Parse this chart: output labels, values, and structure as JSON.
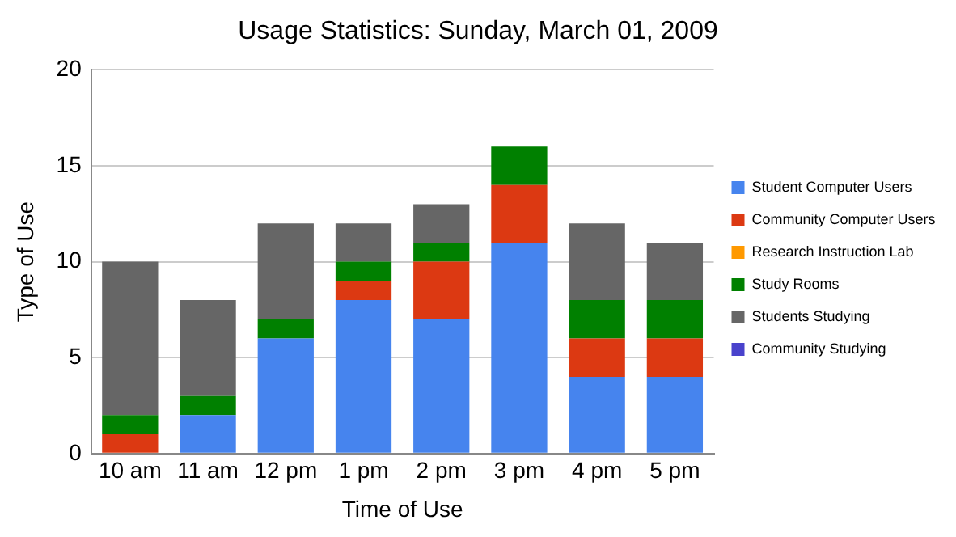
{
  "chart_data": {
    "type": "bar",
    "title": "Usage Statistics: Sunday, March 01, 2009",
    "xlabel": "Time of Use",
    "ylabel": "Type of Use",
    "categories": [
      "10 am",
      "11 am",
      "12 pm",
      "1 pm",
      "2 pm",
      "3 pm",
      "4 pm",
      "5 pm"
    ],
    "stacked": true,
    "ylim": [
      0,
      20
    ],
    "yticks": [
      0,
      5,
      10,
      15,
      20
    ],
    "grid": "y",
    "legend": "right",
    "series": [
      {
        "name": "Student Computer Users",
        "color": "#4684ee",
        "values": [
          0,
          2,
          6,
          8,
          7,
          11,
          4,
          4
        ]
      },
      {
        "name": "Community Computer Users",
        "color": "#dc3912",
        "values": [
          1,
          0,
          0,
          1,
          3,
          3,
          2,
          2
        ]
      },
      {
        "name": "Research Instruction Lab",
        "color": "#ff9900",
        "values": [
          0,
          0,
          0,
          0,
          0,
          0,
          0,
          0
        ]
      },
      {
        "name": "Study Rooms",
        "color": "#008000",
        "values": [
          1,
          1,
          1,
          1,
          1,
          2,
          2,
          2
        ]
      },
      {
        "name": "Students Studying",
        "color": "#666666",
        "values": [
          8,
          5,
          5,
          2,
          2,
          0,
          4,
          3
        ]
      },
      {
        "name": "Community Studying",
        "color": "#4942cc",
        "values": [
          0,
          0,
          0,
          0,
          0,
          0,
          0,
          0
        ]
      }
    ]
  }
}
